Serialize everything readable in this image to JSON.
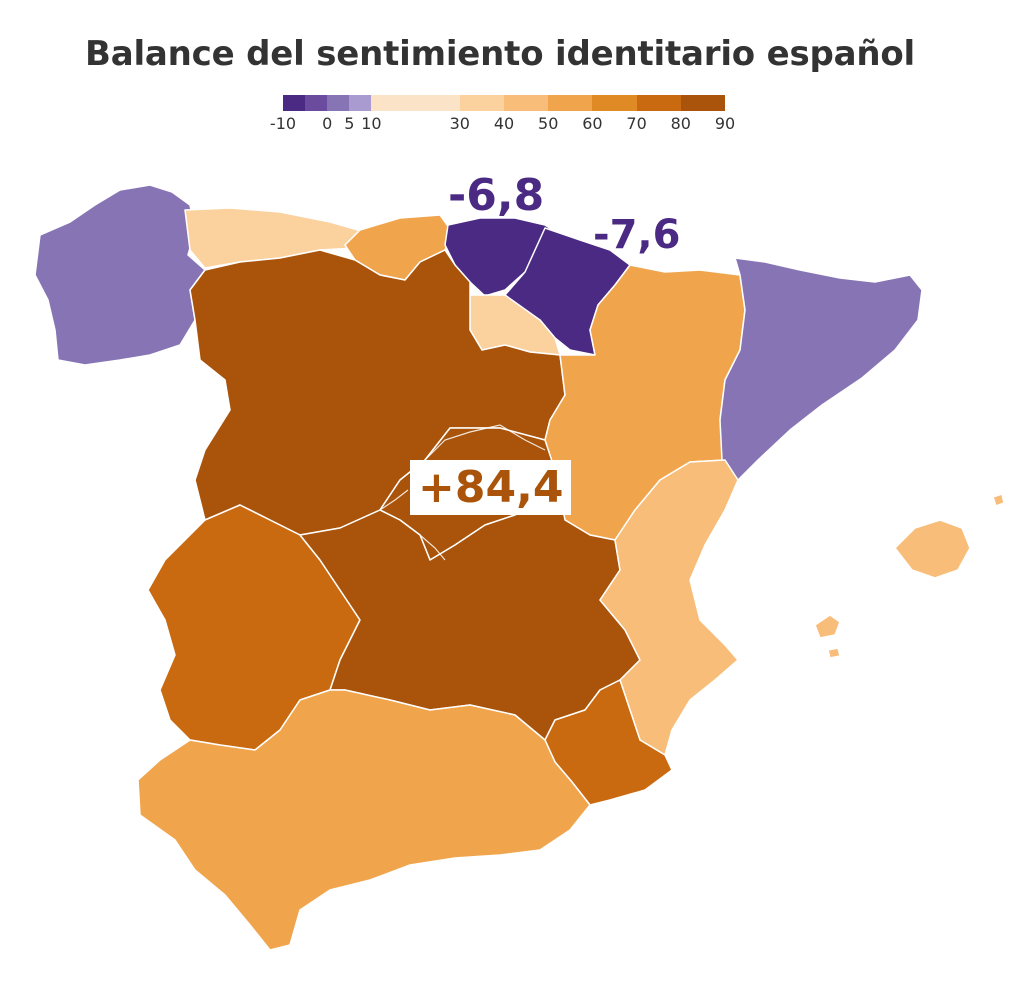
{
  "title": "Balance del sentimiento identitario español",
  "legend": {
    "bins": [
      {
        "from": -10,
        "to": -5,
        "color": "#4b2a83"
      },
      {
        "from": -5,
        "to": 0,
        "color": "#6a4b9e"
      },
      {
        "from": 0,
        "to": 5,
        "color": "#8774b5"
      },
      {
        "from": 5,
        "to": 10,
        "color": "#a99bcf"
      },
      {
        "from": 10,
        "to": 30,
        "color": "#fbe3c8"
      },
      {
        "from": 30,
        "to": 40,
        "color": "#fbd19e"
      },
      {
        "from": 40,
        "to": 50,
        "color": "#f7bd79"
      },
      {
        "from": 50,
        "to": 60,
        "color": "#f0a54d"
      },
      {
        "from": 60,
        "to": 70,
        "color": "#e08a26"
      },
      {
        "from": 70,
        "to": 80,
        "color": "#c96a10"
      },
      {
        "from": 80,
        "to": 90,
        "color": "#a9540a"
      }
    ],
    "labels": [
      "-10",
      "0",
      "5",
      "10",
      "30",
      "40",
      "50",
      "60",
      "70",
      "80",
      "90"
    ]
  },
  "callouts": {
    "basque": "-6,8",
    "navarra": "-7,6",
    "madrid": "+84,4"
  },
  "colors": {
    "purple_dark": "#4b2a83",
    "purple_mid": "#8774b5",
    "orange_dark": "#a9540a",
    "orange_mid": "#c96a10",
    "orange": "#f0a54d",
    "orange_light": "#f7bd79",
    "peach": "#fbd19e"
  }
}
